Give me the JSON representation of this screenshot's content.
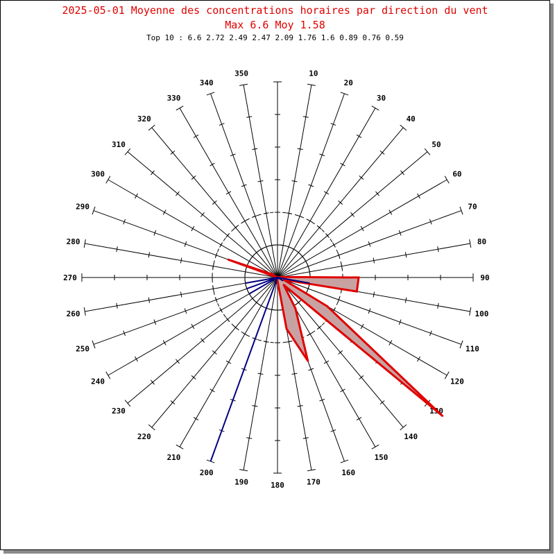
{
  "chart_data": {
    "type": "polar",
    "title": "2025-05-01 Moyenne des concentrations horaires par direction du vent",
    "subtitle": "Max 6.6 Moy 1.58",
    "top10_text": "Top 10 : 6.6 2.72 2.49 2.47 2.09 1.76 1.6 0.89 0.76 0.59",
    "directions": [
      0,
      10,
      20,
      30,
      40,
      50,
      60,
      70,
      80,
      90,
      100,
      110,
      120,
      130,
      140,
      150,
      160,
      170,
      180,
      190,
      200,
      210,
      220,
      230,
      240,
      250,
      260,
      270,
      280,
      290,
      300,
      310,
      320,
      330,
      340,
      350
    ],
    "direction_labels": [
      "10",
      "20",
      "30",
      "40",
      "50",
      "60",
      "70",
      "80",
      "90",
      "100",
      "110",
      "120",
      "130",
      "140",
      "150",
      "160",
      "170",
      "180",
      "190",
      "200",
      "210",
      "220",
      "230",
      "240",
      "250",
      "260",
      "270",
      "280",
      "290",
      "300",
      "310",
      "320",
      "330",
      "340",
      "350"
    ],
    "radial_max": 6.0,
    "reference_circles": [
      1.0,
      2.0
    ],
    "concentration_by_direction": [
      {
        "dir": 80,
        "value": 0.1
      },
      {
        "dir": 90,
        "value": 2.49
      },
      {
        "dir": 100,
        "value": 2.47
      },
      {
        "dir": 110,
        "value": 0.2
      },
      {
        "dir": 120,
        "value": 1.76
      },
      {
        "dir": 130,
        "value": 6.6
      },
      {
        "dir": 140,
        "value": 0.3
      },
      {
        "dir": 150,
        "value": 1.1
      },
      {
        "dir": 160,
        "value": 2.72
      },
      {
        "dir": 170,
        "value": 1.6
      },
      {
        "dir": 180,
        "value": 0.1
      },
      {
        "dir": 240,
        "value": 0.1
      },
      {
        "dir": 250,
        "value": 0.2
      },
      {
        "dir": 260,
        "value": 0.1
      },
      {
        "dir": 290,
        "value": 1.6
      },
      {
        "dir": 300,
        "value": 0.2
      }
    ],
    "frequency_by_direction": [
      {
        "dir": 100,
        "value": 1.0
      },
      {
        "dir": 120,
        "value": 0.2
      },
      {
        "dir": 200,
        "value": 6.0
      },
      {
        "dir": 240,
        "value": 1.0
      },
      {
        "dir": 250,
        "value": 1.0
      },
      {
        "dir": 260,
        "value": 1.0
      }
    ],
    "colors": {
      "concentration_stroke": "#e00000",
      "concentration_fill": "#c8a2a2",
      "frequency_stroke": "#000080",
      "title": "#e00000"
    }
  }
}
